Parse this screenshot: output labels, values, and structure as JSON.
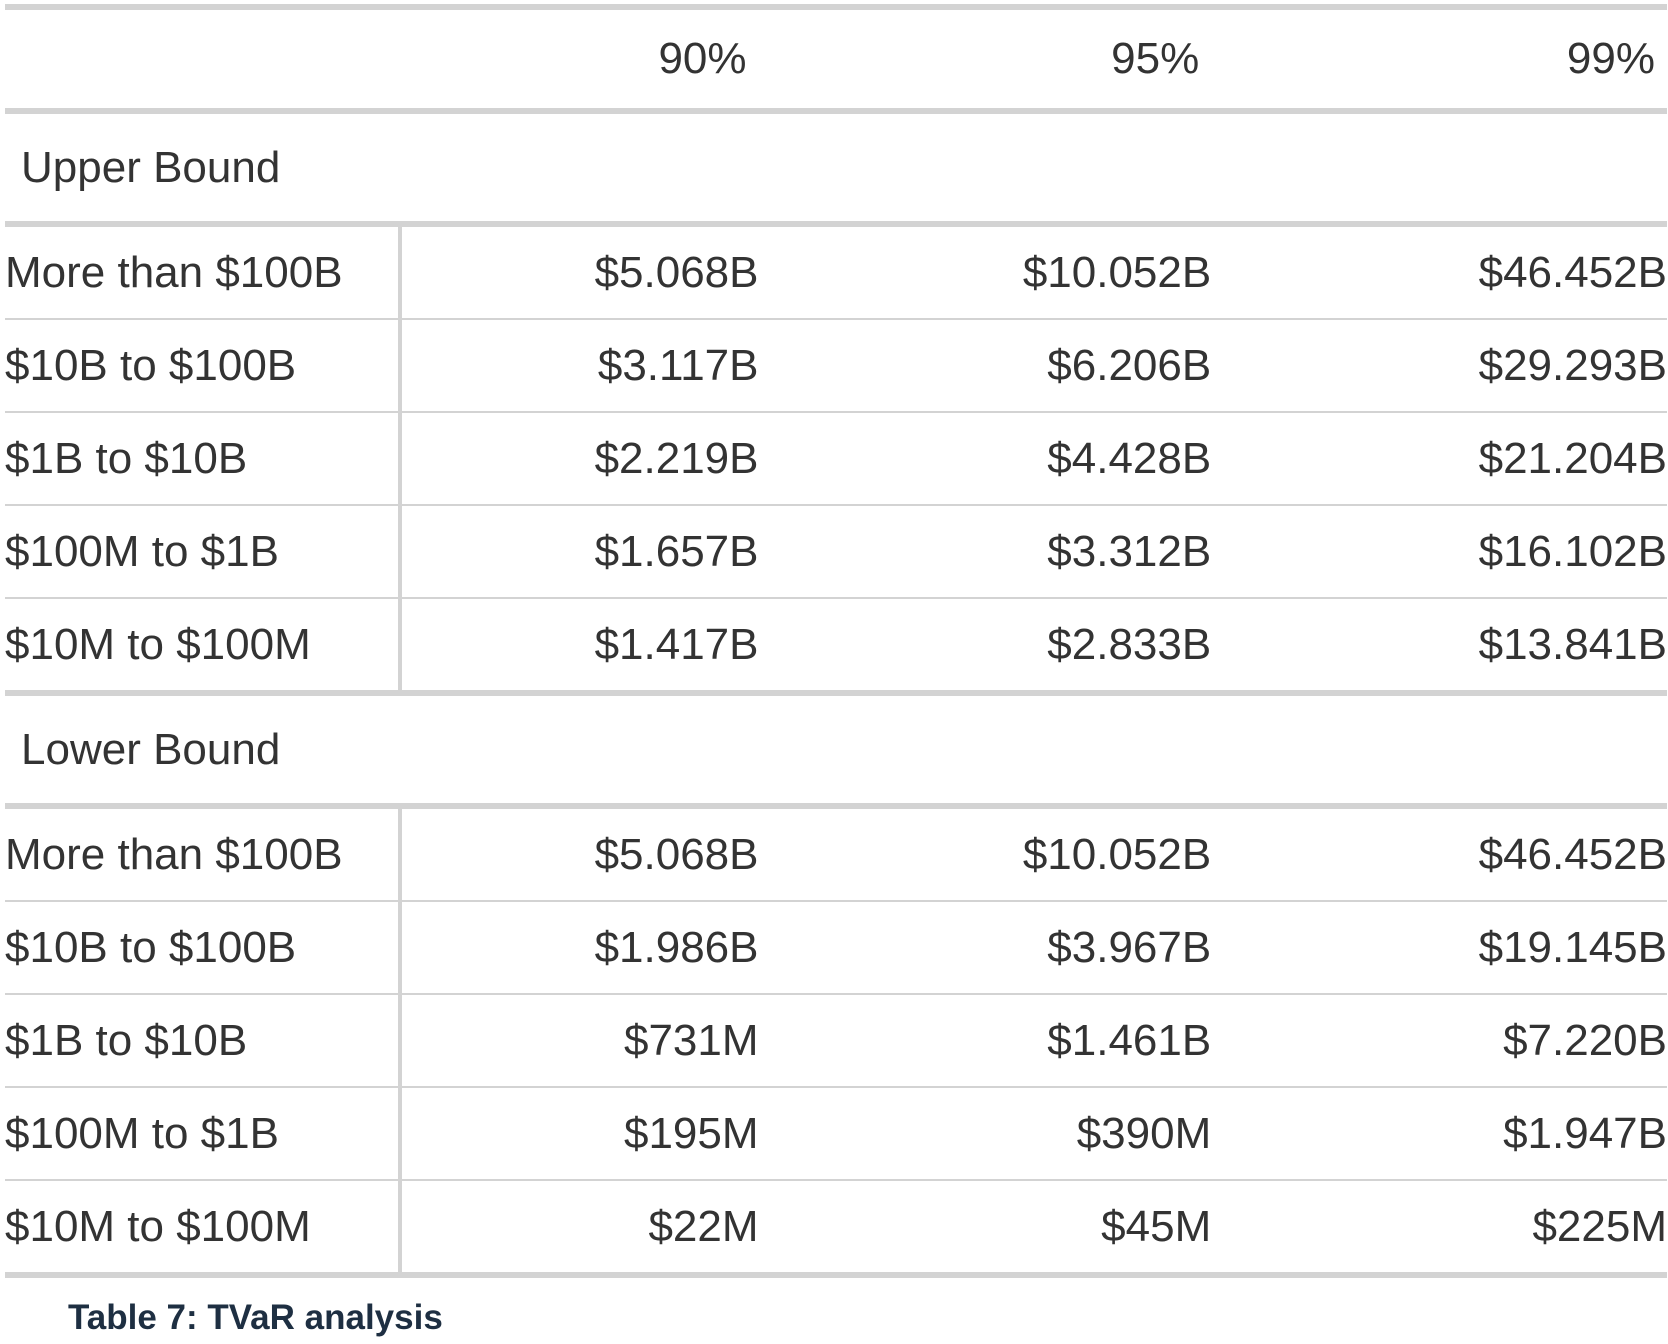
{
  "table": {
    "columns": [
      "",
      "90%",
      "95%",
      "99%"
    ],
    "groups": [
      {
        "name": "Upper Bound",
        "rows": [
          {
            "label": "More than $100B",
            "values": [
              "$5.068B",
              "$10.052B",
              "$46.452B"
            ]
          },
          {
            "label": "$10B to $100B",
            "values": [
              "$3.117B",
              "$6.206B",
              "$29.293B"
            ]
          },
          {
            "label": "$1B to $10B",
            "values": [
              "$2.219B",
              "$4.428B",
              "$21.204B"
            ]
          },
          {
            "label": "$100M to $1B",
            "values": [
              "$1.657B",
              "$3.312B",
              "$16.102B"
            ]
          },
          {
            "label": "$10M to $100M",
            "values": [
              "$1.417B",
              "$2.833B",
              "$13.841B"
            ]
          }
        ]
      },
      {
        "name": "Lower Bound",
        "rows": [
          {
            "label": "More than $100B",
            "values": [
              "$5.068B",
              "$10.052B",
              "$46.452B"
            ]
          },
          {
            "label": "$10B to $100B",
            "values": [
              "$1.986B",
              "$3.967B",
              "$19.145B"
            ]
          },
          {
            "label": "$1B to $10B",
            "values": [
              "$731M",
              "$1.461B",
              "$7.220B"
            ]
          },
          {
            "label": "$100M to $1B",
            "values": [
              "$195M",
              "$390M",
              "$1.947B"
            ]
          },
          {
            "label": "$10M to $100M",
            "values": [
              "$22M",
              "$45M",
              "$225M"
            ]
          }
        ]
      }
    ]
  },
  "caption": "Table 7: TVaR analysis"
}
